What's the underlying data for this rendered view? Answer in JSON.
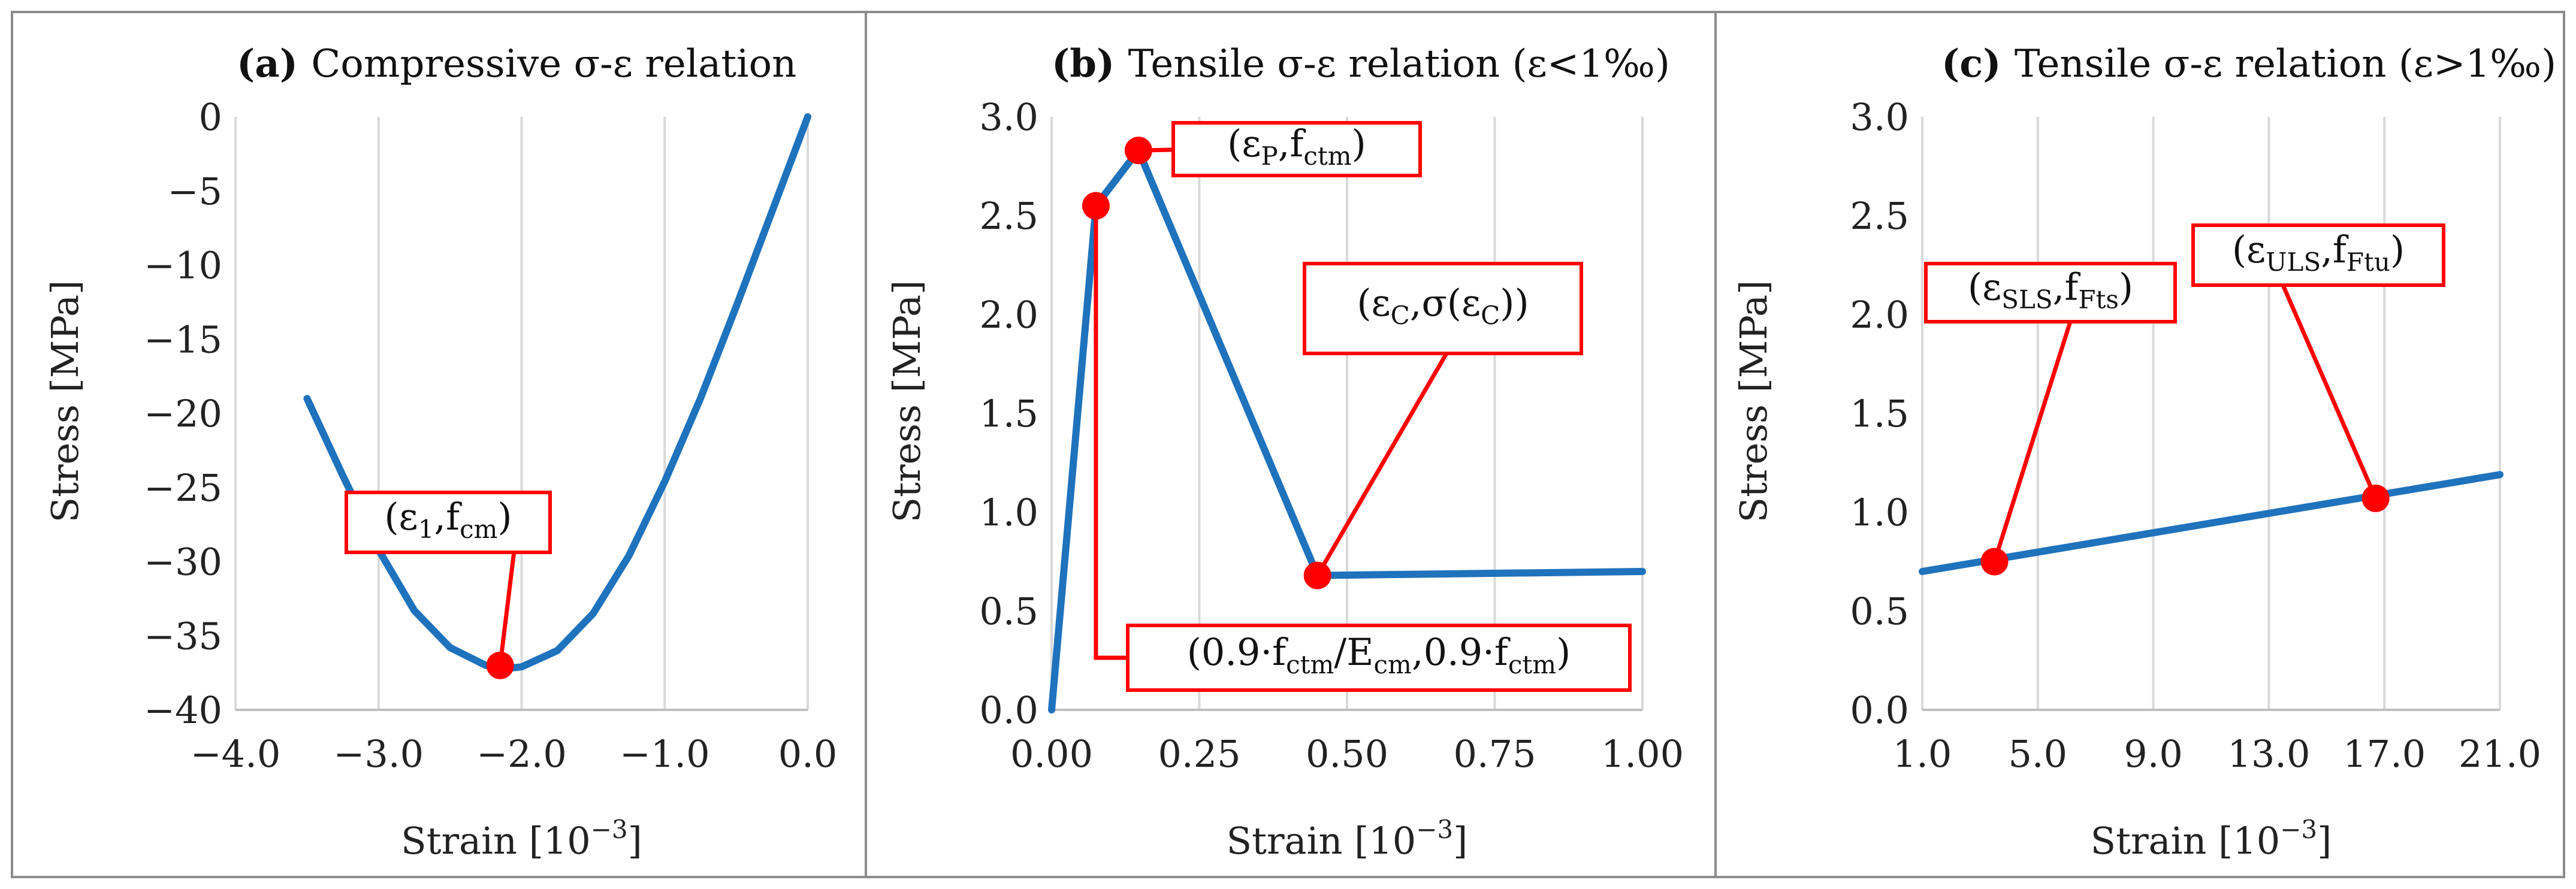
{
  "colors": {
    "series": "#1f72bc",
    "marker": "#ff0000",
    "frame": "#8c8c8c",
    "grid": "#d9d9d9"
  },
  "chart_data": [
    {
      "type": "line",
      "panel": "a",
      "title_letter": "(a)",
      "title": "Compressive σ-ε relation",
      "xlabel": "Strain [10",
      "xlabel_sup": "−3",
      "xlabel_end": "]",
      "ylabel": "Stress [MPa]",
      "xlim": [
        -4.0,
        0.0
      ],
      "ylim": [
        -40,
        0
      ],
      "xticks": [
        -4,
        -3,
        -2,
        -1,
        0
      ],
      "xtick_labels": [
        "−4.0",
        "−3.0",
        "−2.0",
        "−1.0",
        "0.0"
      ],
      "yticks": [
        0,
        -5,
        -10,
        -15,
        -20,
        -25,
        -30,
        -35,
        -40
      ],
      "ytick_labels": [
        "0",
        "−5",
        "−10",
        "−15",
        "−20",
        "−25",
        "−30",
        "−35",
        "−40"
      ],
      "grid": "vertical",
      "series": [
        {
          "name": "σ-ε curve",
          "x": [
            -3.5,
            -3.25,
            -3.0,
            -2.75,
            -2.5,
            -2.25,
            -2.1,
            -2.0,
            -1.75,
            -1.5,
            -1.25,
            -1.0,
            -0.75,
            -0.5,
            -0.25,
            0.0
          ],
          "y": [
            -19.0,
            -24.2,
            -29.2,
            -33.3,
            -35.8,
            -37.0,
            -37.2,
            -37.1,
            -36.0,
            -33.5,
            -29.6,
            -24.6,
            -19.0,
            -12.8,
            -6.4,
            0.0
          ]
        }
      ],
      "points": [
        {
          "x": -2.15,
          "y": -37.0,
          "label_main": "(ε",
          "label_sub": "1",
          "label_sep": ",f",
          "label_sub2": "cm",
          "label_tail": ")"
        }
      ]
    },
    {
      "type": "line",
      "panel": "b",
      "title_letter": "(b)",
      "title": "Tensile σ-ε relation (ε<1‰)",
      "xlabel": "Strain [10",
      "xlabel_sup": "−3",
      "xlabel_end": "]",
      "ylabel": "Stress [MPa]",
      "xlim": [
        0.0,
        1.0
      ],
      "ylim": [
        0.0,
        3.0
      ],
      "xticks": [
        0,
        0.25,
        0.5,
        0.75,
        1.0
      ],
      "xtick_labels": [
        "0.00",
        "0.25",
        "0.50",
        "0.75",
        "1.00"
      ],
      "yticks": [
        3.0,
        2.5,
        2.0,
        1.5,
        1.0,
        0.5,
        0.0
      ],
      "ytick_labels": [
        "3.0",
        "2.5",
        "2.0",
        "1.5",
        "1.0",
        "0.5",
        "0.0"
      ],
      "grid": "vertical",
      "series": [
        {
          "name": "σ-ε curve",
          "x": [
            0.0,
            0.075,
            0.147,
            0.45,
            1.0
          ],
          "y": [
            0.0,
            2.55,
            2.83,
            0.68,
            0.7
          ]
        }
      ],
      "points": [
        {
          "x": 0.147,
          "y": 2.83,
          "label_main": "(ε",
          "label_sub": "P",
          "label_sep": ",f",
          "label_sub2": "ctm",
          "label_tail": ")"
        },
        {
          "x": 0.45,
          "y": 0.68,
          "label_main": "(ε",
          "label_sub": "C",
          "label_sep": ",σ(ε",
          "label_sub2": "C",
          "label_tail": "))"
        },
        {
          "x": 0.075,
          "y": 2.55,
          "label_main": "(0.9·f",
          "label_sub": "ctm",
          "label_sep": "/E",
          "label_sub2": "cm",
          "label_tail": ",0.9·f",
          "label_sub3": "ctm",
          "label_tail2": ")"
        }
      ]
    },
    {
      "type": "line",
      "panel": "c",
      "title_letter": "(c)",
      "title": "Tensile σ-ε relation (ε>1‰)",
      "xlabel": "Strain [10",
      "xlabel_sup": "−3",
      "xlabel_end": "]",
      "ylabel": "Stress [MPa]",
      "xlim": [
        1.0,
        21.0
      ],
      "ylim": [
        0.0,
        3.0
      ],
      "xticks": [
        1,
        5,
        9,
        13,
        17,
        21
      ],
      "xtick_labels": [
        "1.0",
        "5.0",
        "9.0",
        "13.0",
        "17.0",
        "21.0"
      ],
      "yticks": [
        3.0,
        2.5,
        2.0,
        1.5,
        1.0,
        0.5,
        0.0
      ],
      "ytick_labels": [
        "3.0",
        "2.5",
        "2.0",
        "1.5",
        "1.0",
        "0.5",
        "0.0"
      ],
      "grid": "vertical",
      "series": [
        {
          "name": "σ-ε curve",
          "x": [
            1.0,
            21.0
          ],
          "y": [
            0.7,
            1.19
          ]
        }
      ],
      "points": [
        {
          "x": 3.5,
          "y": 0.75,
          "label_main": "(ε",
          "label_sub": "SLS",
          "label_sep": ",f",
          "label_sub2": "Fts",
          "label_tail": ")"
        },
        {
          "x": 16.7,
          "y": 1.07,
          "label_main": "(ε",
          "label_sub": "ULS",
          "label_sep": ",f",
          "label_sub2": "Ftu",
          "label_tail": ")"
        }
      ]
    }
  ]
}
